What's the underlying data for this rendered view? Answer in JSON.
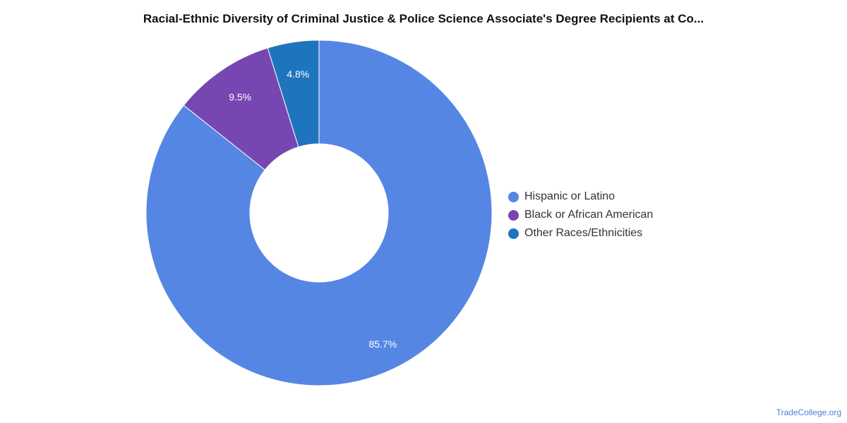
{
  "chart_data": {
    "type": "pie",
    "title": "Racial-Ethnic Diversity of Criminal Justice & Police Science Associate's Degree Recipients at Co...",
    "categories": [
      "Hispanic or Latino",
      "Black or African American",
      "Other Races/Ethnicities"
    ],
    "values": [
      85.7,
      9.5,
      4.8
    ],
    "data_labels": [
      "85.7%",
      "9.5%",
      "4.8%"
    ],
    "colors": [
      "#5586e3",
      "#7647b0",
      "#1f74be"
    ],
    "donut": true,
    "legend_position": "right"
  },
  "watermark": "TradeCollege.org"
}
